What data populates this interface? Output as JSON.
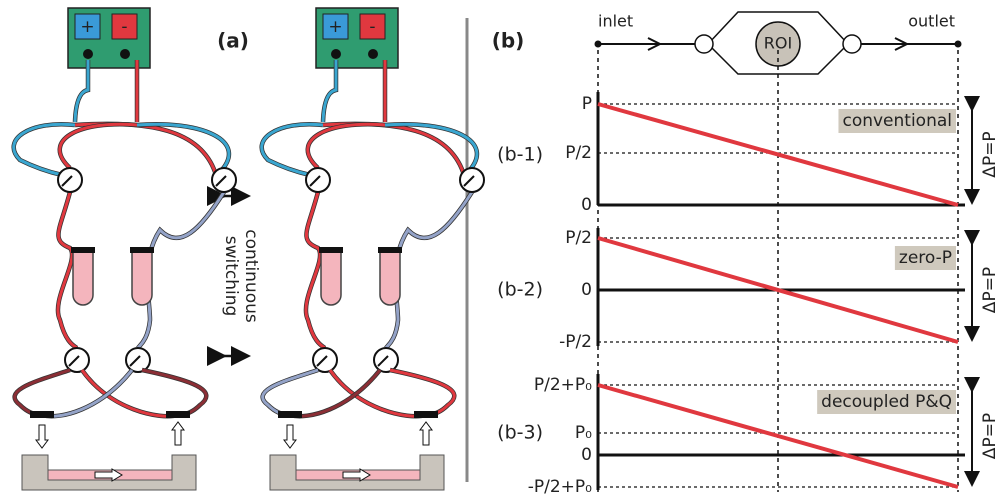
{
  "panel_a": {
    "label": "(a)",
    "switch_label": [
      "continuous",
      "switching"
    ],
    "power_supplies": [
      {
        "plus": "+",
        "minus": "-"
      },
      {
        "plus": "+",
        "minus": "-"
      }
    ]
  },
  "panel_b": {
    "label": "(b)",
    "inlet": "inlet",
    "outlet": "outlet",
    "roi": "ROI",
    "plots": [
      {
        "label": "(b-1)",
        "ticks": [
          "P",
          "P/2",
          "0"
        ],
        "mode": "conventional",
        "delta": "ΔP=P"
      },
      {
        "label": "(b-2)",
        "ticks": [
          "P/2",
          "0",
          "-P/2"
        ],
        "mode": "zero-P",
        "delta": "ΔP=P"
      },
      {
        "label": "(b-3)",
        "ticks": [
          "P/2+P₀",
          "P₀",
          "0",
          "-P/2+P₀"
        ],
        "mode": "decoupled P&Q",
        "delta": "ΔP=P"
      }
    ]
  }
}
